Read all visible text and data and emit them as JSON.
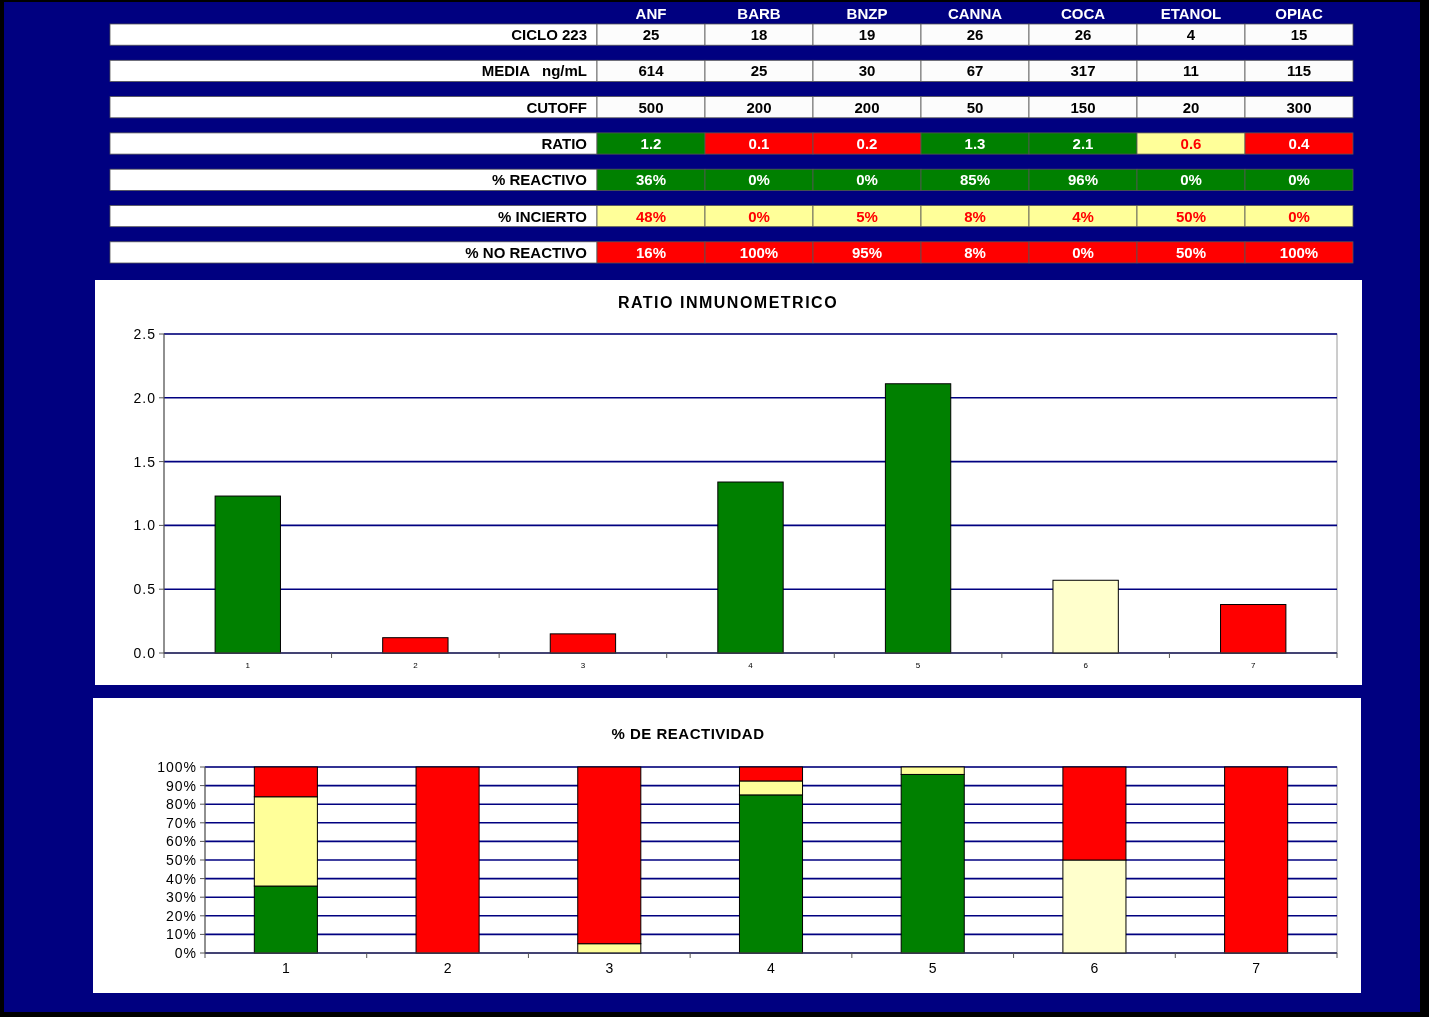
{
  "chart_data": [
    {
      "type": "heatmap",
      "categories": [
        "ANF",
        "BARB",
        "BNZP",
        "CANNA",
        "COCA",
        "ETANOL",
        "OPIAC"
      ],
      "y_categories": [
        "CICLO 223",
        "MEDIA   ng/mL",
        "CUTOFF",
        "RATIO",
        "% REACTIVO",
        "% INCIERTO",
        "% NO REACTIVO"
      ],
      "cells": [
        [
          25,
          18,
          19,
          26,
          26,
          4,
          15
        ],
        [
          614,
          25,
          30,
          67,
          317,
          11,
          115
        ],
        [
          500,
          200,
          200,
          50,
          150,
          20,
          300
        ],
        [
          1.2,
          0.1,
          0.2,
          1.3,
          2.1,
          0.6,
          0.4
        ],
        [
          36,
          0,
          0,
          85,
          96,
          0,
          0
        ],
        [
          48,
          0,
          5,
          8,
          4,
          50,
          0
        ],
        [
          16,
          100,
          95,
          8,
          0,
          50,
          100
        ]
      ],
      "cell_labels": [
        [
          "25",
          "18",
          "19",
          "26",
          "26",
          "4",
          "15"
        ],
        [
          "614",
          "25",
          "30",
          "67",
          "317",
          "11",
          "115"
        ],
        [
          "500",
          "200",
          "200",
          "50",
          "150",
          "20",
          "300"
        ],
        [
          "1.2",
          "0.1",
          "0.2",
          "1.3",
          "2.1",
          "0.6",
          "0.4"
        ],
        [
          "36%",
          "0%",
          "0%",
          "85%",
          "96%",
          "0%",
          "0%"
        ],
        [
          "48%",
          "0%",
          "5%",
          "8%",
          "4%",
          "50%",
          "0%"
        ],
        [
          "16%",
          "100%",
          "95%",
          "8%",
          "0%",
          "50%",
          "100%"
        ]
      ],
      "colors": [
        [
          "#fcfcfc",
          "#fcfcfc",
          "#fcfcfc",
          "#fcfcfc",
          "#fcfcfc",
          "#fcfcfc",
          "#fcfcfc"
        ],
        [
          "#fcfcfc",
          "#fcfcfc",
          "#fcfcfc",
          "#fcfcfc",
          "#fcfcfc",
          "#fcfcfc",
          "#fcfcfc"
        ],
        [
          "#fcfcfc",
          "#fcfcfc",
          "#fcfcfc",
          "#fcfcfc",
          "#fcfcfc",
          "#fcfcfc",
          "#fcfcfc"
        ],
        [
          "#008000",
          "#ff0000",
          "#ff0000",
          "#008000",
          "#008000",
          "#ffff99",
          "#ff0000"
        ],
        [
          "#008000",
          "#008000",
          "#008000",
          "#008000",
          "#008000",
          "#008000",
          "#008000"
        ],
        [
          "#ffff99",
          "#ffff99",
          "#ffff99",
          "#ffff99",
          "#ffff99",
          "#ffff99",
          "#ffff99"
        ],
        [
          "#ff0000",
          "#ff0000",
          "#ff0000",
          "#ff0000",
          "#ff0000",
          "#ff0000",
          "#ff0000"
        ]
      ]
    },
    {
      "type": "bar",
      "title": "RATIO INMUNOMETRICO",
      "categories": [
        "1",
        "2",
        "3",
        "4",
        "5",
        "6",
        "7"
      ],
      "values": [
        1.23,
        0.12,
        0.15,
        1.34,
        2.11,
        0.57,
        0.38
      ],
      "colors": [
        "#008000",
        "#ff0000",
        "#ff0000",
        "#008000",
        "#008000",
        "#ffffcc",
        "#ff0000"
      ],
      "ylim": [
        0,
        2.5
      ],
      "yticks": [
        {
          "value": 0,
          "label": "0.0"
        },
        0.5,
        {
          "value": 1,
          "label": "1.0"
        },
        1.5,
        {
          "value": 2,
          "label": "2.0"
        },
        2.5
      ],
      "grid": "y"
    },
    {
      "type": "bar",
      "title": "% DE REACTIVIDAD",
      "stacked": true,
      "categories": [
        "1",
        "2",
        "3",
        "4",
        "5",
        "6",
        "7"
      ],
      "series": [
        {
          "color": "#008000",
          "values": [
            36,
            0,
            0,
            85,
            96,
            0,
            0
          ]
        },
        {
          "colors": [
            "#ffff99",
            "#ffff99",
            "#ffff99",
            "#ffff99",
            "#ffff99",
            "#ffffcc",
            "#ffff99"
          ],
          "values": [
            48,
            0,
            5,
            7.5,
            4,
            50,
            0
          ]
        },
        {
          "color": "#ff0000",
          "values": [
            16,
            100,
            95,
            7.5,
            0,
            50,
            100
          ]
        }
      ],
      "ylim": [
        0,
        100
      ],
      "yticks": [
        {
          "value": 0,
          "label": "0%"
        },
        {
          "value": 10,
          "label": "10%"
        },
        {
          "value": 20,
          "label": "20%"
        },
        {
          "value": 30,
          "label": "30%"
        },
        {
          "value": 40,
          "label": "40%"
        },
        {
          "value": 50,
          "label": "50%"
        },
        {
          "value": 60,
          "label": "60%"
        },
        {
          "value": 70,
          "label": "70%"
        },
        {
          "value": 80,
          "label": "80%"
        },
        {
          "value": 90,
          "label": "90%"
        },
        {
          "value": 100,
          "label": "100%"
        }
      ],
      "grid": "y"
    }
  ]
}
